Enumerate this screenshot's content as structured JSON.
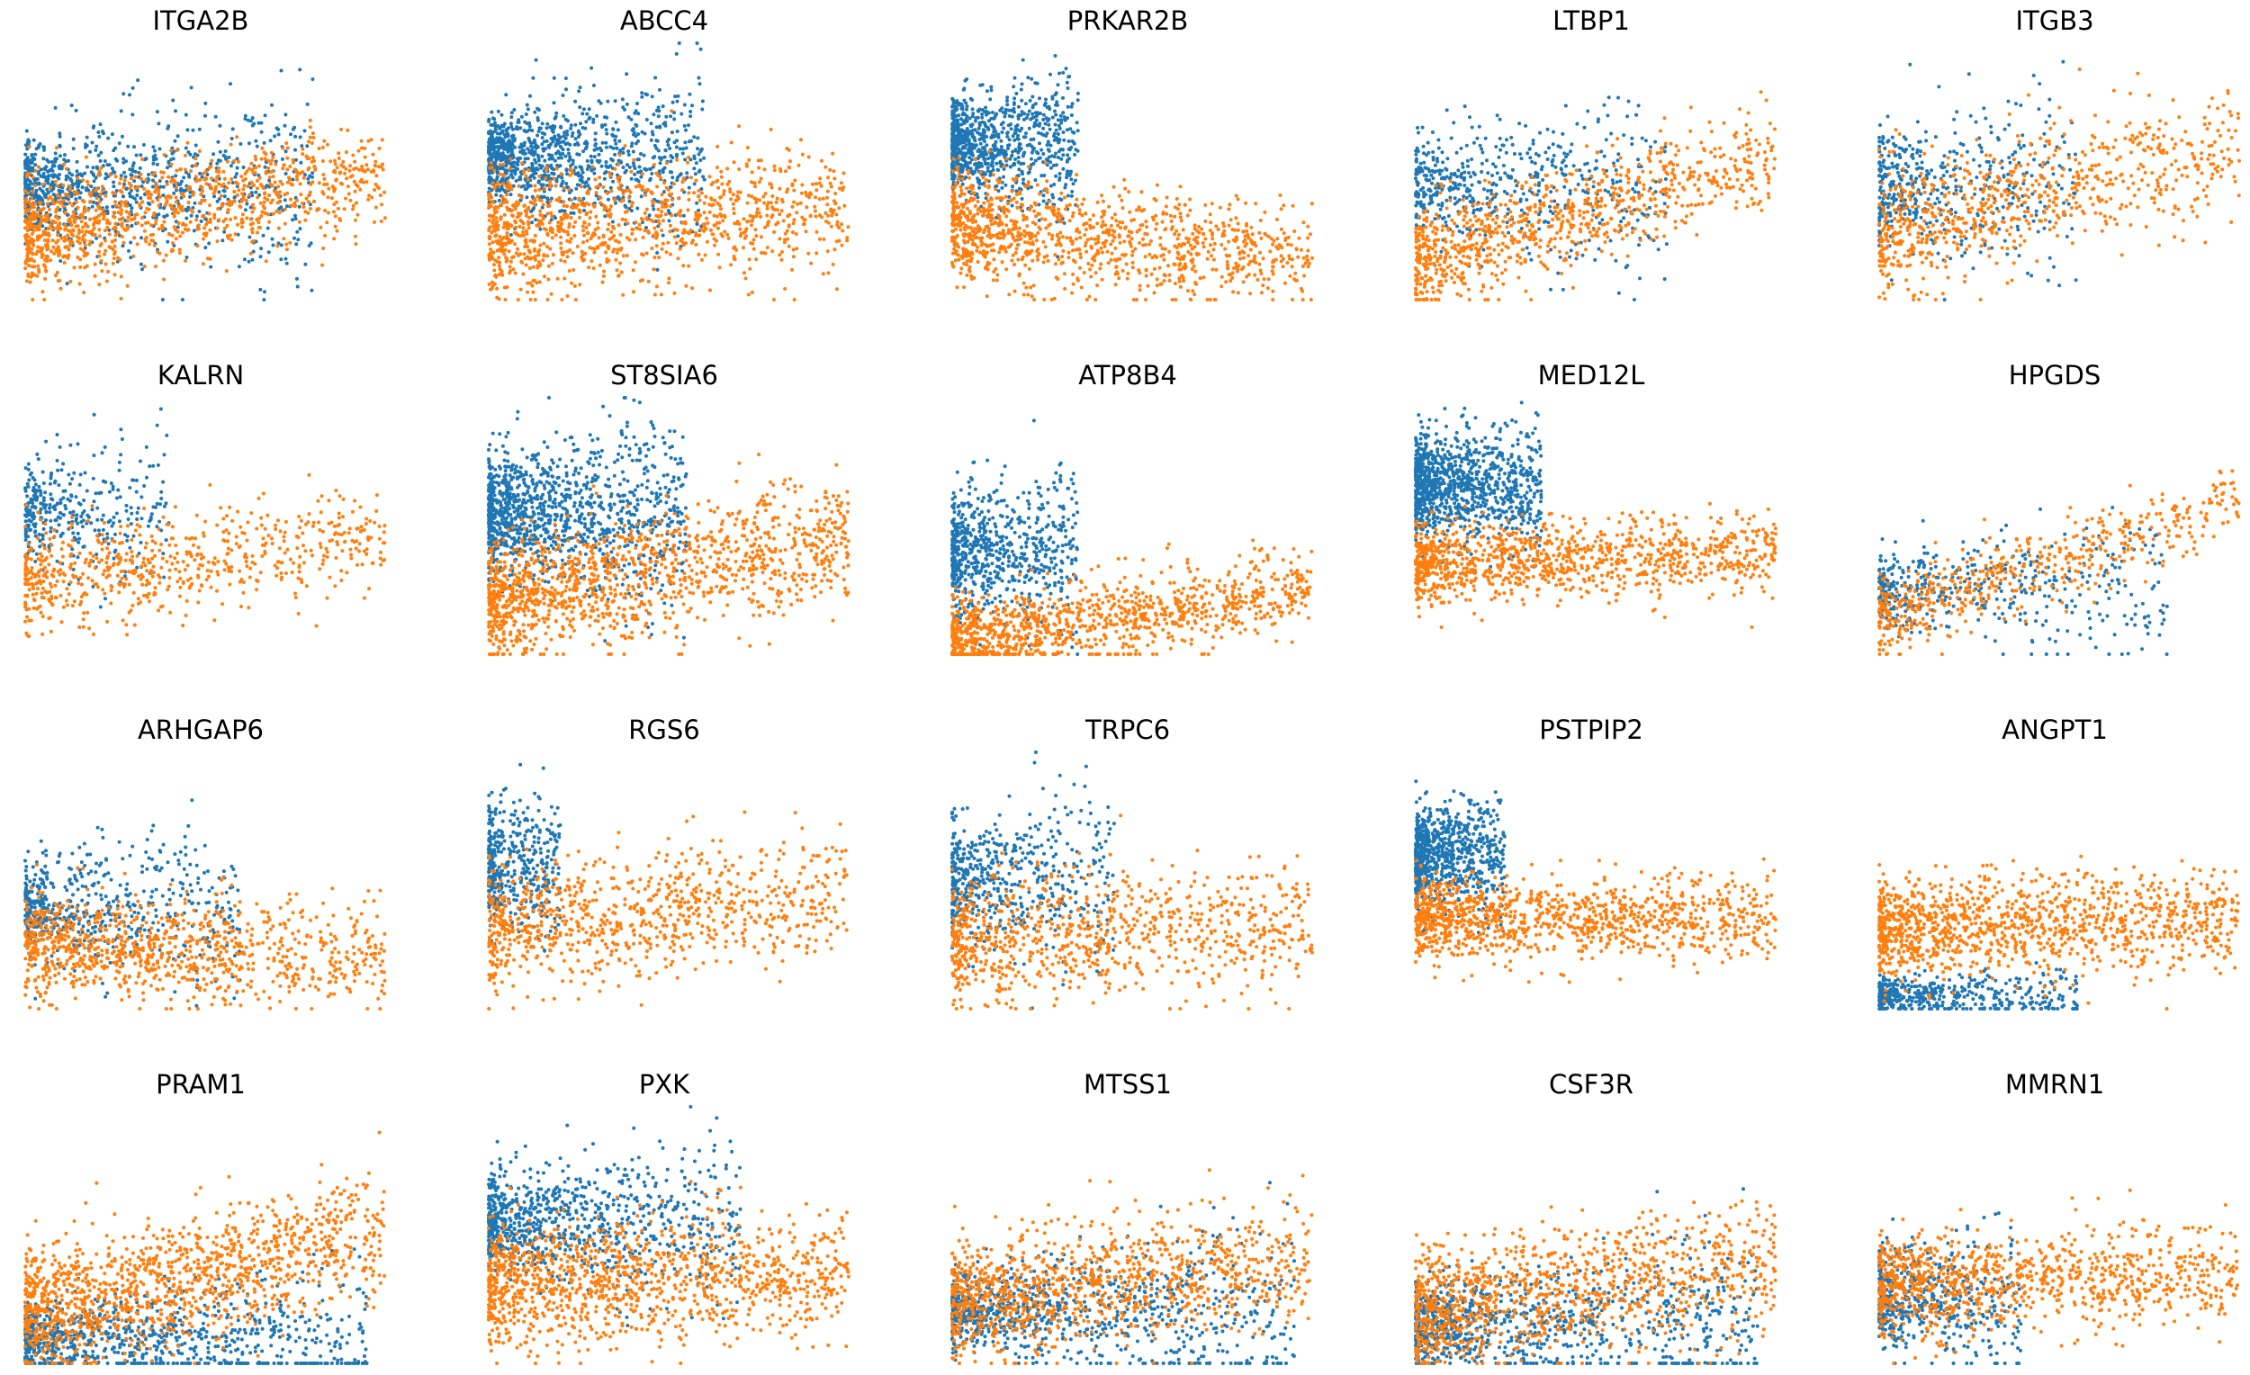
{
  "figure": {
    "colors": {
      "series_a": "#1f77b4",
      "series_b": "#ff7f0e"
    },
    "axes_visible": false
  },
  "chart_data": [
    {
      "type": "scatter",
      "title": "ITGA2B",
      "grid": false
    },
    {
      "type": "scatter",
      "title": "ABCC4",
      "grid": false
    },
    {
      "type": "scatter",
      "title": "PRKAR2B",
      "grid": false
    },
    {
      "type": "scatter",
      "title": "LTBP1",
      "grid": false
    },
    {
      "type": "scatter",
      "title": "ITGB3",
      "grid": false
    },
    {
      "type": "scatter",
      "title": "KALRN",
      "grid": false
    },
    {
      "type": "scatter",
      "title": "ST8SIA6",
      "grid": false
    },
    {
      "type": "scatter",
      "title": "ATP8B4",
      "grid": false
    },
    {
      "type": "scatter",
      "title": "MED12L",
      "grid": false
    },
    {
      "type": "scatter",
      "title": "HPGDS",
      "grid": false
    },
    {
      "type": "scatter",
      "title": "ARHGAP6",
      "grid": false
    },
    {
      "type": "scatter",
      "title": "RGS6",
      "grid": false
    },
    {
      "type": "scatter",
      "title": "TRPC6",
      "grid": false
    },
    {
      "type": "scatter",
      "title": "PSTPIP2",
      "grid": false
    },
    {
      "type": "scatter",
      "title": "ANGPT1",
      "grid": false
    },
    {
      "type": "scatter",
      "title": "PRAM1",
      "grid": false
    },
    {
      "type": "scatter",
      "title": "PXK",
      "grid": false
    },
    {
      "type": "scatter",
      "title": "MTSS1",
      "grid": false
    },
    {
      "type": "scatter",
      "title": "CSF3R",
      "grid": false
    },
    {
      "type": "scatter",
      "title": "MMRN1",
      "grid": false
    }
  ]
}
